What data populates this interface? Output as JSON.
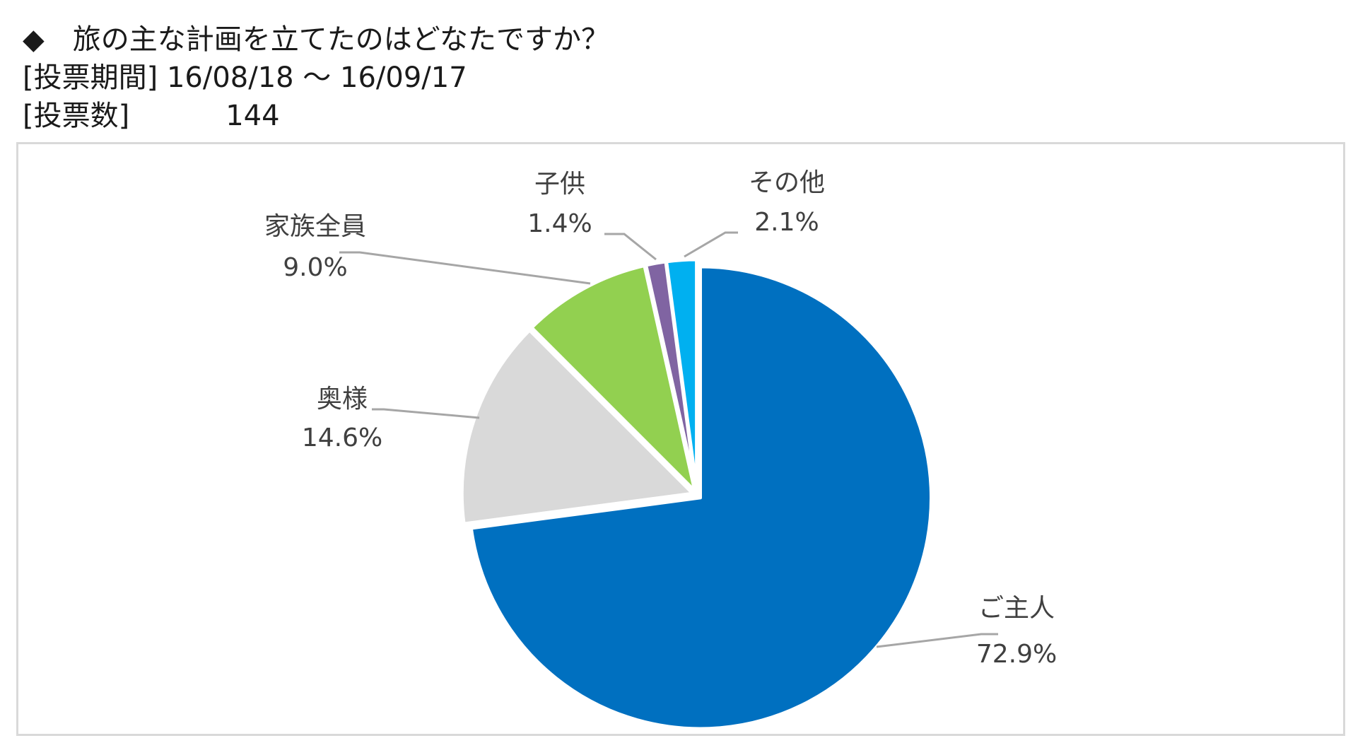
{
  "header": {
    "question": "◆　旅の主な計画を立てたのはどなたですか？",
    "period_label": "[投票期間]",
    "period_value": "16/08/18 ～ 16/09/17",
    "votes_label": "[投票数]",
    "votes_value": "144"
  },
  "chart_data": {
    "type": "pie",
    "start_angle_deg": 0,
    "direction": "clockwise",
    "slices": [
      {
        "label": "ご主人",
        "value": 72.9,
        "display": "72.9%",
        "color": "#0070C0"
      },
      {
        "label": "奥様",
        "value": 14.6,
        "display": "14.6%",
        "color": "#D9D9D9"
      },
      {
        "label": "家族全員",
        "value": 9.0,
        "display": "9.0%",
        "color": "#92D050"
      },
      {
        "label": "子供",
        "value": 1.4,
        "display": "1.4%",
        "color": "#8064A2"
      },
      {
        "label": "その他",
        "value": 2.1,
        "display": "2.1%",
        "color": "#00B0F0"
      }
    ],
    "leader_line_color": "#A6A6A6",
    "slice_border_color": "#FFFFFF"
  }
}
